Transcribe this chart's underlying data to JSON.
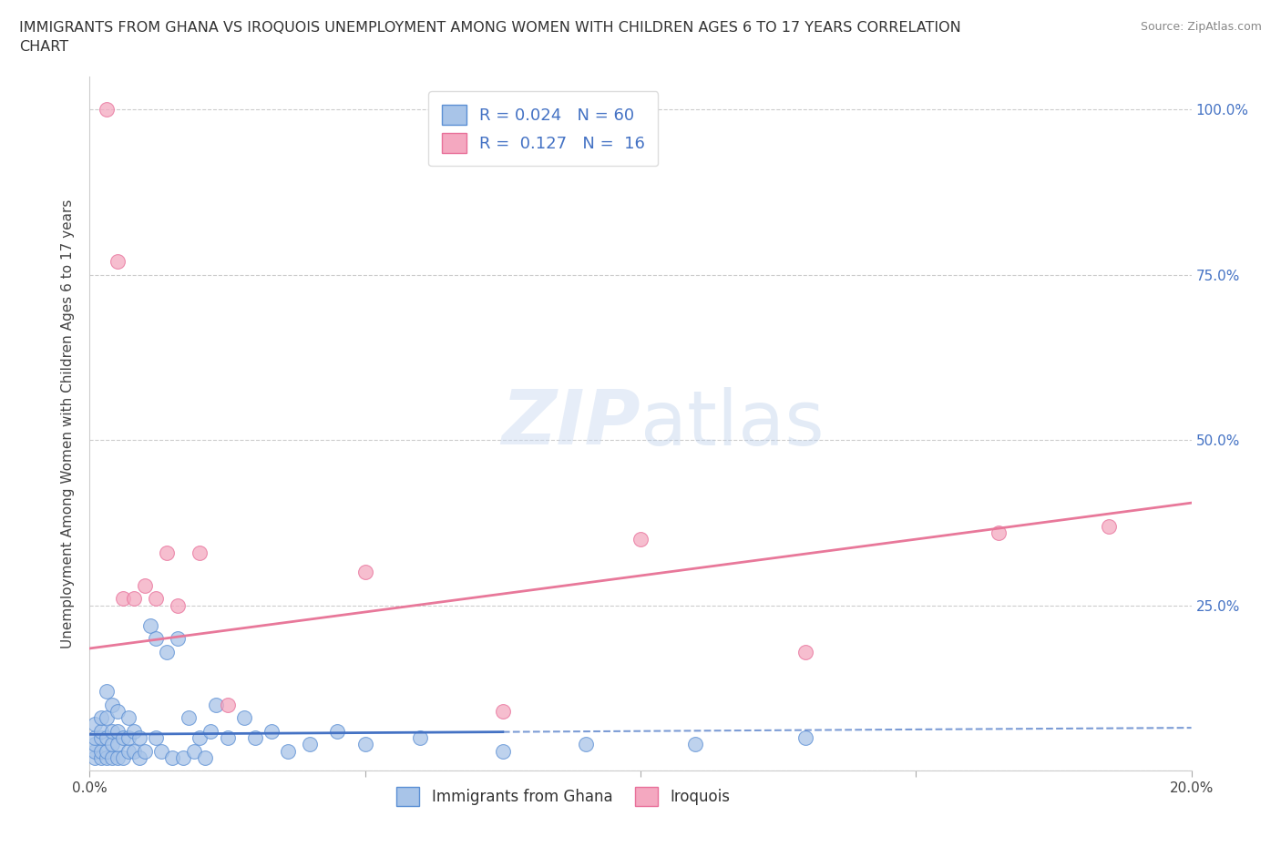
{
  "title_line1": "IMMIGRANTS FROM GHANA VS IROQUOIS UNEMPLOYMENT AMONG WOMEN WITH CHILDREN AGES 6 TO 17 YEARS CORRELATION",
  "title_line2": "CHART",
  "source": "Source: ZipAtlas.com",
  "ylabel": "Unemployment Among Women with Children Ages 6 to 17 years",
  "xlim": [
    0.0,
    0.2
  ],
  "ylim": [
    0.0,
    1.05
  ],
  "yticks": [
    0.0,
    0.25,
    0.5,
    0.75,
    1.0
  ],
  "ytick_labels": [
    "",
    "25.0%",
    "50.0%",
    "75.0%",
    "100.0%"
  ],
  "xticks": [
    0.0,
    0.05,
    0.1,
    0.15,
    0.2
  ],
  "xtick_labels": [
    "0.0%",
    "",
    "",
    "",
    "20.0%"
  ],
  "ghana_color": "#a8c4e8",
  "iroquois_color": "#f4a8c0",
  "ghana_edge_color": "#5b8fd4",
  "iroquois_edge_color": "#e8709a",
  "ghana_line_color": "#4472c4",
  "iroquois_line_color": "#e8789a",
  "background_color": "#ffffff",
  "watermark": "ZIPatlas",
  "legend_R_ghana": "R = 0.024",
  "legend_N_ghana": "N = 60",
  "legend_R_iroquois": "R =  0.127",
  "legend_N_iroquois": "N =  16",
  "ghana_x": [
    0.001,
    0.001,
    0.001,
    0.001,
    0.001,
    0.002,
    0.002,
    0.002,
    0.002,
    0.002,
    0.003,
    0.003,
    0.003,
    0.003,
    0.003,
    0.004,
    0.004,
    0.004,
    0.004,
    0.005,
    0.005,
    0.005,
    0.005,
    0.006,
    0.006,
    0.007,
    0.007,
    0.007,
    0.008,
    0.008,
    0.009,
    0.009,
    0.01,
    0.011,
    0.012,
    0.012,
    0.013,
    0.014,
    0.015,
    0.016,
    0.017,
    0.018,
    0.019,
    0.02,
    0.021,
    0.022,
    0.023,
    0.025,
    0.028,
    0.03,
    0.033,
    0.036,
    0.04,
    0.045,
    0.05,
    0.06,
    0.075,
    0.09,
    0.11,
    0.13
  ],
  "ghana_y": [
    0.02,
    0.03,
    0.04,
    0.05,
    0.07,
    0.02,
    0.03,
    0.05,
    0.06,
    0.08,
    0.02,
    0.03,
    0.05,
    0.08,
    0.12,
    0.02,
    0.04,
    0.06,
    0.1,
    0.02,
    0.04,
    0.06,
    0.09,
    0.02,
    0.05,
    0.03,
    0.05,
    0.08,
    0.03,
    0.06,
    0.02,
    0.05,
    0.03,
    0.22,
    0.05,
    0.2,
    0.03,
    0.18,
    0.02,
    0.2,
    0.02,
    0.08,
    0.03,
    0.05,
    0.02,
    0.06,
    0.1,
    0.05,
    0.08,
    0.05,
    0.06,
    0.03,
    0.04,
    0.06,
    0.04,
    0.05,
    0.03,
    0.04,
    0.04,
    0.05
  ],
  "iroquois_x": [
    0.003,
    0.005,
    0.006,
    0.008,
    0.01,
    0.012,
    0.014,
    0.016,
    0.02,
    0.025,
    0.05,
    0.075,
    0.1,
    0.13,
    0.165,
    0.185
  ],
  "iroquois_y": [
    1.0,
    0.77,
    0.26,
    0.26,
    0.28,
    0.26,
    0.33,
    0.25,
    0.33,
    0.1,
    0.3,
    0.09,
    0.35,
    0.18,
    0.36,
    0.37
  ],
  "ghana_line_x": [
    0.0,
    0.075,
    0.075,
    0.2
  ],
  "ghana_line_y_intercept": 0.055,
  "ghana_line_slope": 0.05,
  "iroquois_line_y_intercept": 0.185,
  "iroquois_line_slope": 1.1
}
